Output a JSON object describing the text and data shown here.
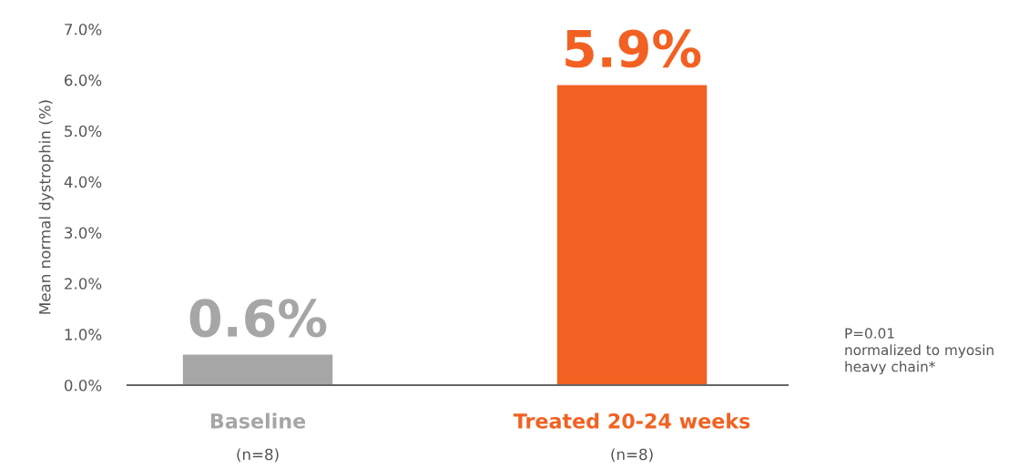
{
  "chart_data": {
    "type": "bar",
    "ylabel": "Mean normal dystrophin (%)",
    "categories": [
      "Baseline\n(n=8)",
      "Treated 20-24 weeks\n(n=8)"
    ],
    "values": [
      0.6,
      5.9
    ],
    "colors": [
      "#a6a6a6",
      "#f26122"
    ],
    "value_labels": [
      "0.6%",
      "5.9%"
    ],
    "ylim": [
      0,
      7.0
    ],
    "yticks": [
      {
        "value": 0,
        "label": "0.0%"
      },
      {
        "value": 1,
        "label": "1.0%"
      },
      {
        "value": 2,
        "label": "2.0%"
      },
      {
        "value": 3,
        "label": "3.0%"
      },
      {
        "value": 4,
        "label": "4.0%"
      },
      {
        "value": 5,
        "label": "5.0%"
      },
      {
        "value": 6,
        "label": "6.0%"
      },
      {
        "value": 7,
        "label": "7.0%"
      }
    ],
    "grid": false,
    "annotations": [
      "P=0.01\nnormalized to myosin\nheavy chain*"
    ]
  }
}
